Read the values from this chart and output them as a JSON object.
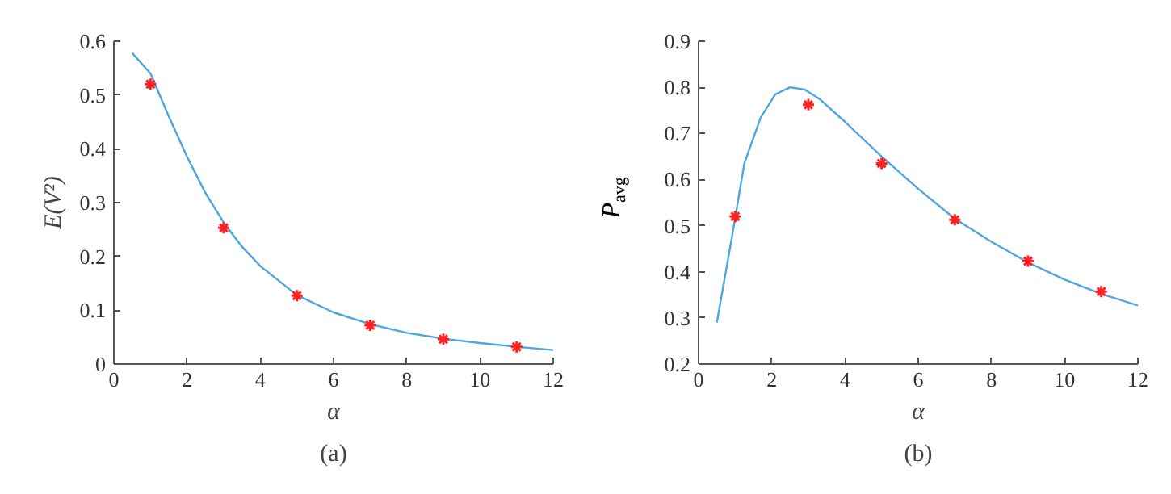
{
  "chart_data": [
    {
      "type": "line",
      "xlabel": "α",
      "ylabel": "E(V²)",
      "xlim": [
        0,
        12
      ],
      "ylim": [
        0,
        0.6
      ],
      "xticks": [
        0,
        2,
        4,
        6,
        8,
        10,
        12
      ],
      "yticks": [
        0,
        0.1,
        0.2,
        0.3,
        0.4,
        0.5,
        0.6
      ],
      "grid": false,
      "annotations": [
        "(a)"
      ],
      "series": [
        {
          "color": "#4da6e0",
          "marker": "none",
          "line_style": "solid",
          "x": [
            0.5,
            1,
            1.5,
            2,
            2.5,
            3,
            3.5,
            4,
            5,
            6,
            7,
            8,
            9,
            10,
            11,
            12
          ],
          "values": [
            0.578,
            0.54,
            0.46,
            0.385,
            0.318,
            0.263,
            0.218,
            0.182,
            0.128,
            0.096,
            0.074,
            0.058,
            0.047,
            0.039,
            0.032,
            0.026
          ]
        },
        {
          "type": "scatter",
          "color": "#ff2020",
          "marker": "cross",
          "x": [
            1,
            3,
            5,
            7,
            9,
            11
          ],
          "values": [
            0.52,
            0.253,
            0.127,
            0.072,
            0.046,
            0.032
          ]
        }
      ]
    },
    {
      "type": "line",
      "xlabel": "α",
      "ylabel": "P$_{avg}$",
      "xlim": [
        0,
        12
      ],
      "ylim": [
        0.2,
        0.9
      ],
      "xticks": [
        0,
        2,
        4,
        6,
        8,
        10,
        12
      ],
      "yticks": [
        0.2,
        0.3,
        0.4,
        0.5,
        0.6,
        0.7,
        0.8,
        0.9
      ],
      "grid": false,
      "annotations": [
        "(b)"
      ],
      "series": [
        {
          "color": "#4da6e0",
          "marker": "none",
          "line_style": "solid",
          "x": [
            0.5,
            0.9,
            1.25,
            1.7,
            2.1,
            2.5,
            2.9,
            3.3,
            4,
            5,
            6,
            7,
            8,
            9,
            10,
            11,
            12
          ],
          "values": [
            0.29,
            0.47,
            0.635,
            0.735,
            0.785,
            0.8,
            0.795,
            0.775,
            0.725,
            0.65,
            0.58,
            0.515,
            0.465,
            0.42,
            0.383,
            0.352,
            0.327
          ]
        },
        {
          "type": "scatter",
          "color": "#ff2020",
          "marker": "cross",
          "x": [
            1,
            3,
            5,
            7,
            9,
            11
          ],
          "values": [
            0.52,
            0.762,
            0.635,
            0.513,
            0.423,
            0.357
          ]
        }
      ]
    }
  ]
}
